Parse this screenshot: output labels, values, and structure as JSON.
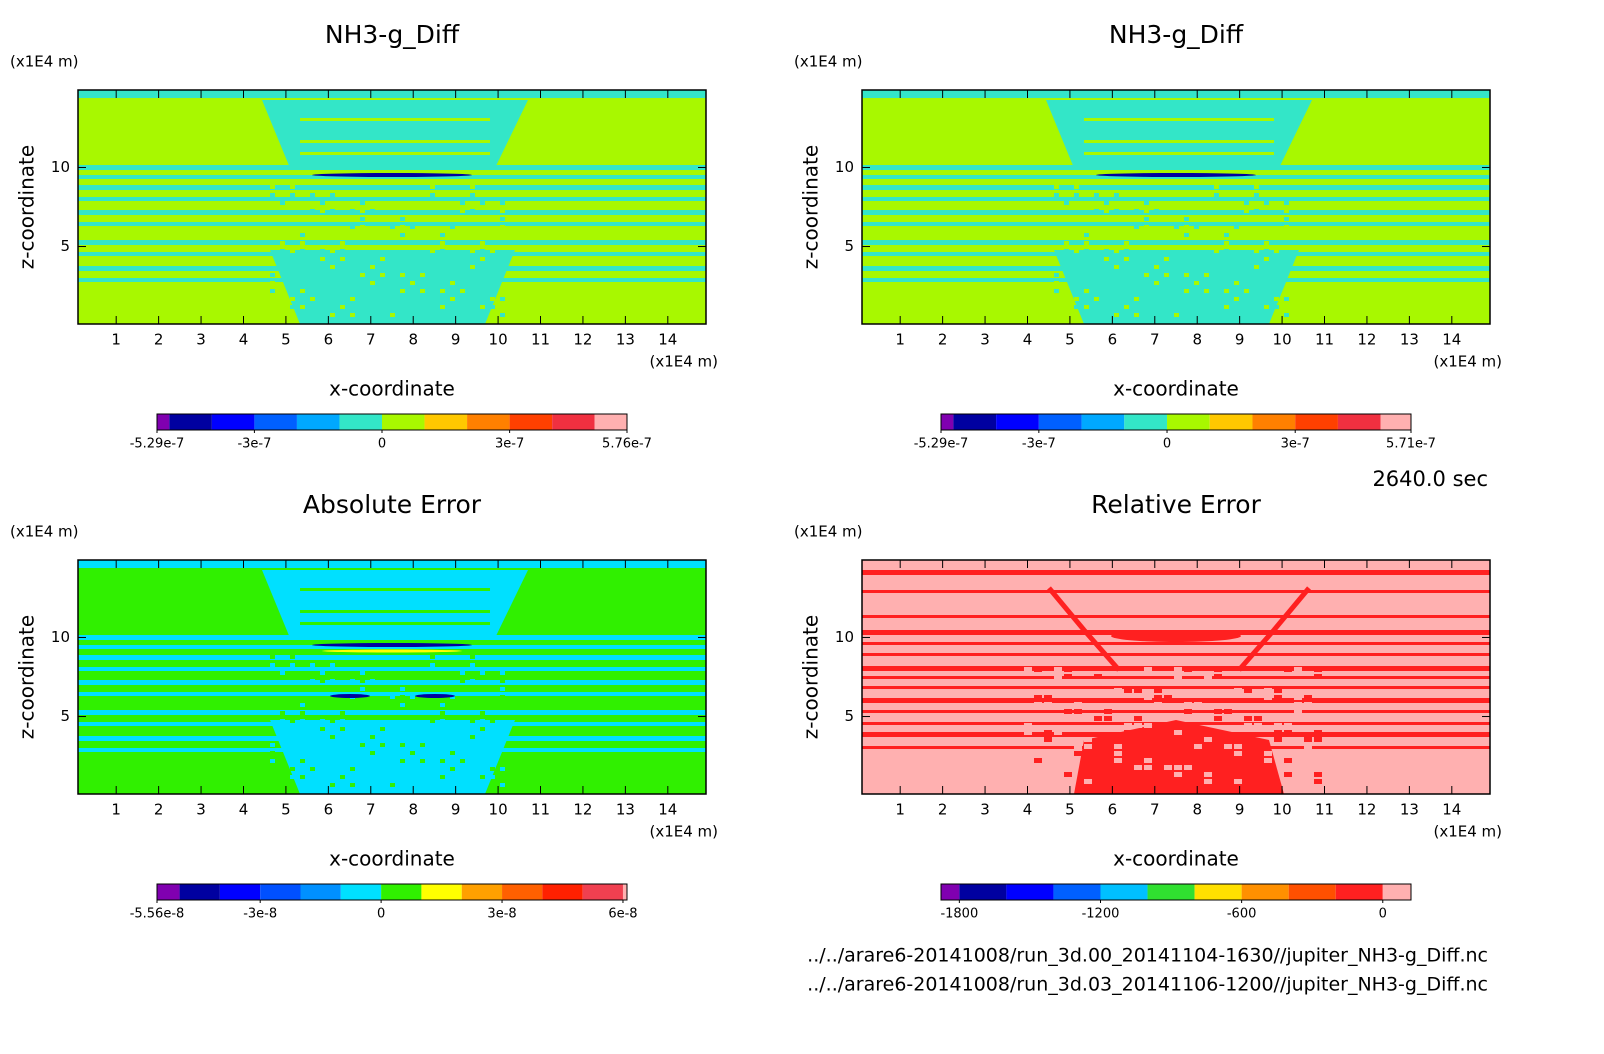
{
  "chart_data": [
    {
      "type": "contour",
      "title": "NH3-g_Diff",
      "xlabel": "x-coordinate",
      "ylabel": "z-coordinate",
      "x_unit": "(x1E4 m)",
      "y_unit": "(x1E4 m)",
      "xlim": [
        0.1,
        14.9
      ],
      "ylim": [
        0.1,
        14.9
      ],
      "xticks": [
        1,
        2,
        3,
        4,
        5,
        6,
        7,
        8,
        9,
        10,
        11,
        12,
        13,
        14
      ],
      "yticks": [
        5,
        10
      ],
      "colorbar": {
        "clim": [
          -5.29e-07,
          5.76e-07
        ],
        "levels": [
          -5e-07,
          -4e-07,
          -3e-07,
          -2e-07,
          -1e-07,
          0,
          1e-07,
          2e-07,
          3e-07,
          4e-07,
          5e-07
        ],
        "colors": [
          "#8000b0",
          "#0000a0",
          "#0000ff",
          "#0060ff",
          "#00a8ff",
          "#33e6c8",
          "#a8f800",
          "#ffc800",
          "#ff8000",
          "#ff4000",
          "#f03040",
          "#ffb0b0"
        ],
        "ticks": [
          -5.29e-07,
          -3e-07,
          0,
          3e-07,
          5.76e-07
        ]
      }
    },
    {
      "type": "contour",
      "title": "NH3-g_Diff",
      "xlabel": "x-coordinate",
      "ylabel": "z-coordinate",
      "x_unit": "(x1E4 m)",
      "y_unit": "(x1E4 m)",
      "xlim": [
        0.1,
        14.9
      ],
      "ylim": [
        0.1,
        14.9
      ],
      "xticks": [
        1,
        2,
        3,
        4,
        5,
        6,
        7,
        8,
        9,
        10,
        11,
        12,
        13,
        14
      ],
      "yticks": [
        5,
        10
      ],
      "colorbar": {
        "clim": [
          -5.29e-07,
          5.71e-07
        ],
        "levels": [
          -5e-07,
          -4e-07,
          -3e-07,
          -2e-07,
          -1e-07,
          0,
          1e-07,
          2e-07,
          3e-07,
          4e-07,
          5e-07
        ],
        "colors": [
          "#8000b0",
          "#0000a0",
          "#0000ff",
          "#0060ff",
          "#00a8ff",
          "#33e6c8",
          "#a8f800",
          "#ffc800",
          "#ff8000",
          "#ff4000",
          "#f03040",
          "#ffb0b0"
        ],
        "ticks": [
          -5.29e-07,
          -3e-07,
          0,
          3e-07,
          5.71e-07
        ]
      }
    },
    {
      "type": "contour",
      "title": "Absolute Error",
      "xlabel": "x-coordinate",
      "ylabel": "z-coordinate",
      "x_unit": "(x1E4 m)",
      "y_unit": "(x1E4 m)",
      "xlim": [
        0.1,
        14.9
      ],
      "ylim": [
        0.1,
        14.9
      ],
      "xticks": [
        1,
        2,
        3,
        4,
        5,
        6,
        7,
        8,
        9,
        10,
        11,
        12,
        13,
        14
      ],
      "yticks": [
        5,
        10
      ],
      "colorbar": {
        "clim": [
          -5.56e-08,
          6.1e-08
        ],
        "levels": [
          -5e-08,
          -4e-08,
          -3e-08,
          -2e-08,
          -1e-08,
          0,
          1e-08,
          2e-08,
          3e-08,
          4e-08,
          5e-08,
          6e-08
        ],
        "colors": [
          "#8000b0",
          "#0000a0",
          "#0000ff",
          "#0050ff",
          "#0090ff",
          "#00e0ff",
          "#30f000",
          "#ffff00",
          "#ffa000",
          "#ff6000",
          "#ff2000",
          "#f04050",
          "#ffb0b0"
        ],
        "ticks": [
          -5.56e-08,
          -3e-08,
          0,
          3e-08,
          6e-08
        ]
      }
    },
    {
      "type": "contour",
      "title": "Relative Error",
      "xlabel": "x-coordinate",
      "ylabel": "z-coordinate",
      "x_unit": "(x1E4 m)",
      "y_unit": "(x1E4 m)",
      "xlim": [
        0.1,
        14.9
      ],
      "ylim": [
        0.1,
        14.9
      ],
      "xticks": [
        1,
        2,
        3,
        4,
        5,
        6,
        7,
        8,
        9,
        10,
        11,
        12,
        13,
        14
      ],
      "yticks": [
        5,
        10
      ],
      "colorbar": {
        "clim": [
          -1878,
          120
        ],
        "levels": [
          -1800,
          -1600,
          -1400,
          -1200,
          -1000,
          -800,
          -600,
          -400,
          -200,
          0
        ],
        "colors": [
          "#8000b0",
          "#0000a0",
          "#0000ff",
          "#0060ff",
          "#00c0ff",
          "#30e030",
          "#ffe000",
          "#ff9000",
          "#ff5000",
          "#ff2020",
          "#ffb0b0"
        ],
        "ticks": [
          -1800,
          -1200,
          -600,
          0
        ]
      }
    }
  ],
  "annotations": {
    "time": "2640.0 sec",
    "files": [
      "../../arare6-20141008/run_3d.00_20141104-1630//jupiter_NH3-g_Diff.nc",
      "../../arare6-20141008/run_3d.03_20141106-1200//jupiter_NH3-g_Diff.nc"
    ]
  }
}
